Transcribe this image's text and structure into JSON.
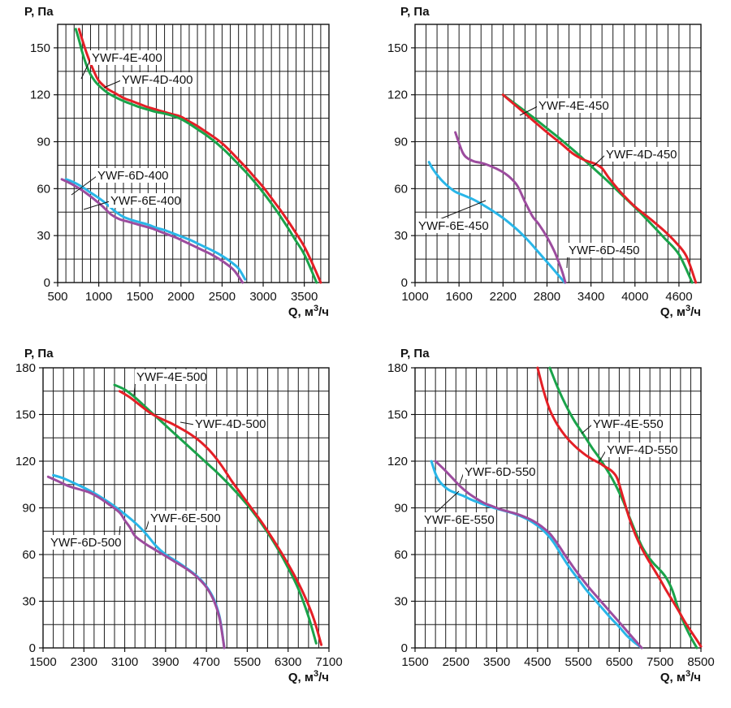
{
  "chart_data": [
    {
      "type": "line",
      "ylabel": "P, Па",
      "xlabel": "Q, м³/ч",
      "xlabel_prefix": "Q, м",
      "xlabel_sup": "3",
      "xlabel_suffix": "/ч",
      "xlim": [
        500,
        3800
      ],
      "ylim": [
        0,
        165
      ],
      "x_ticks": [
        500,
        1000,
        1500,
        2000,
        2500,
        3000,
        3500
      ],
      "y_ticks": [
        0,
        30,
        60,
        90,
        120,
        150
      ],
      "x_grid_step": 100,
      "y_grid_step": 15,
      "series": [
        {
          "name": "YWF-4E-400",
          "color": "#e41f26",
          "x": [
            760,
            800,
            850,
            900,
            950,
            1000,
            1100,
            1200,
            1300,
            1400,
            1500,
            1600,
            1700,
            1800,
            1900,
            2000,
            2100,
            2200,
            2300,
            2400,
            2500,
            2600,
            2700,
            2800,
            2900,
            3000,
            3100,
            3200,
            3300,
            3400,
            3500,
            3600,
            3700
          ],
          "y": [
            162,
            155,
            147,
            140,
            134,
            129,
            124,
            121,
            118,
            116,
            114,
            112,
            110.5,
            109,
            107.5,
            106,
            103,
            100,
            96.5,
            93,
            89,
            84,
            78.5,
            73,
            67,
            61,
            54,
            47,
            39.5,
            31.5,
            23,
            12,
            0
          ]
        },
        {
          "name": "YWF-4D-400",
          "color": "#1aa34a",
          "x": [
            720,
            760,
            800,
            850,
            900,
            950,
            1000,
            1100,
            1200,
            1300,
            1400,
            1500,
            1600,
            1700,
            1800,
            1900,
            2000,
            2100,
            2200,
            2300,
            2400,
            2500,
            2600,
            2700,
            2800,
            2900,
            3000,
            3100,
            3200,
            3300,
            3400,
            3500,
            3650
          ],
          "y": [
            162,
            155,
            147,
            139,
            133,
            129,
            126,
            121.5,
            118.5,
            116,
            114,
            112,
            110.5,
            109,
            108,
            106.5,
            104.5,
            101.5,
            98,
            94.5,
            90.5,
            86,
            81,
            75.5,
            70,
            64,
            57.5,
            50.5,
            43,
            35,
            26.5,
            18,
            0
          ]
        },
        {
          "name": "YWF-6D-400",
          "color": "#29b6e8",
          "x": [
            600,
            700,
            800,
            900,
            1000,
            1100,
            1200,
            1300,
            1400,
            1500,
            1600,
            1700,
            1800,
            1900,
            2000,
            2100,
            2200,
            2300,
            2400,
            2500,
            2600,
            2700,
            2780
          ],
          "y": [
            66,
            64,
            61,
            57.5,
            54,
            50,
            45.5,
            42,
            40,
            38.5,
            37,
            35,
            33.5,
            31.5,
            29.5,
            27.5,
            25,
            22.5,
            20,
            17,
            13.5,
            9,
            2
          ]
        },
        {
          "name": "YWF-6E-400",
          "color": "#9c4c9e",
          "x": [
            550,
            650,
            750,
            850,
            950,
            1050,
            1150,
            1250,
            1350,
            1450,
            1550,
            1650,
            1750,
            1850,
            1950,
            2050,
            2150,
            2250,
            2350,
            2450,
            2550,
            2650,
            2750
          ],
          "y": [
            66,
            63.5,
            60.5,
            57,
            53,
            48.5,
            43.5,
            40.5,
            39,
            37.5,
            36,
            34.5,
            32.5,
            30.5,
            28.5,
            26,
            23.5,
            21,
            18.5,
            15.5,
            12,
            7.5,
            0
          ]
        }
      ],
      "labels": [
        {
          "text": "YWF-4E-400",
          "series": 0
        },
        {
          "text": "YWF-4D-400",
          "series": 1
        },
        {
          "text": "YWF-6D-400",
          "series": 2
        },
        {
          "text": "YWF-6E-400",
          "series": 3
        }
      ]
    },
    {
      "type": "line",
      "ylabel": "P, Па",
      "xlabel": "Q, м³/ч",
      "xlabel_prefix": "Q, м",
      "xlabel_sup": "3",
      "xlabel_suffix": "/ч",
      "xlim": [
        1000,
        4900
      ],
      "ylim": [
        0,
        165
      ],
      "x_ticks": [
        1000,
        1600,
        2200,
        2800,
        3400,
        4000,
        4600
      ],
      "y_ticks": [
        0,
        30,
        60,
        90,
        120,
        150
      ],
      "x_grid_step": 150,
      "y_grid_step": 15,
      "series": [
        {
          "name": "YWF-4E-450",
          "color": "#1aa34a",
          "x": [
            2200,
            2400,
            2600,
            2800,
            3000,
            3200,
            3400,
            3600,
            3800,
            4000,
            4200,
            4400,
            4600,
            4780
          ],
          "y": [
            120,
            113,
            106,
            98.5,
            91,
            83,
            74.5,
            66,
            57,
            48,
            38.5,
            28.5,
            18,
            0
          ]
        },
        {
          "name": "YWF-4D-450",
          "color": "#e41f26",
          "x": [
            2200,
            2400,
            2600,
            2800,
            3000,
            3150,
            3300,
            3450,
            3550,
            3650,
            3800,
            4000,
            4200,
            4400,
            4550,
            4700,
            4830
          ],
          "y": [
            120,
            112,
            104,
            96,
            88.5,
            82.5,
            78.5,
            76,
            73,
            66.5,
            58,
            48.5,
            41,
            33,
            26,
            17,
            0
          ]
        },
        {
          "name": "YWF-6E-450",
          "color": "#29b6e8",
          "x": [
            1190,
            1250,
            1350,
            1450,
            1550,
            1650,
            1800,
            1950,
            2100,
            2250,
            2400,
            2550,
            2700,
            2850,
            2950,
            3040
          ],
          "y": [
            77,
            72,
            66,
            61.5,
            58,
            56,
            53,
            49,
            44.5,
            39.5,
            33.5,
            26.5,
            18.5,
            10.5,
            5,
            0
          ]
        },
        {
          "name": "YWF-6D-450",
          "color": "#9c4c9e",
          "x": [
            1550,
            1600,
            1650,
            1700,
            1800,
            1900,
            2000,
            2100,
            2200,
            2300,
            2400,
            2500,
            2600,
            2650,
            2700,
            2800,
            2900,
            2960,
            3000,
            3030,
            3050
          ],
          "y": [
            96,
            89,
            83,
            80,
            77.5,
            76.5,
            75,
            73,
            70.5,
            67,
            61.5,
            51.5,
            42.5,
            39.5,
            36.5,
            29,
            20,
            13,
            8,
            3.5,
            0
          ]
        }
      ],
      "labels": [
        {
          "text": "YWF-4E-450",
          "series": 0
        },
        {
          "text": "YWF-4D-450",
          "series": 1
        },
        {
          "text": "YWF-6E-450",
          "series": 2
        },
        {
          "text": "YWF-6D-450",
          "series": 3
        }
      ]
    },
    {
      "type": "line",
      "ylabel": "P, Па",
      "xlabel": "Q, м³/ч",
      "xlabel_prefix": "Q, м",
      "xlabel_sup": "3",
      "xlabel_suffix": "/ч",
      "xlim": [
        1500,
        7100
      ],
      "ylim": [
        0,
        180
      ],
      "x_ticks": [
        1500,
        2300,
        3100,
        3900,
        4700,
        5500,
        6300,
        7100
      ],
      "x_tick_labels": [
        "1500",
        "2300",
        "3100",
        "3900",
        "4700",
        "5500",
        "6300",
        "7100"
      ],
      "y_ticks": [
        0,
        30,
        60,
        90,
        120,
        150,
        180
      ],
      "x_grid_step": 200,
      "y_grid_step": 15,
      "series": [
        {
          "name": "YWF-4E-500",
          "color": "#1aa34a",
          "x": [
            2900,
            3100,
            3300,
            3500,
            3700,
            3900,
            4100,
            4300,
            4500,
            4700,
            4900,
            5100,
            5300,
            5500,
            5700,
            5900,
            6100,
            6300,
            6500,
            6700,
            6850
          ],
          "y": [
            169,
            166,
            161,
            155,
            149,
            143,
            137,
            131,
            125,
            119,
            113,
            106.5,
            99.5,
            92,
            83.5,
            74,
            63.5,
            51.5,
            38,
            20,
            3
          ]
        },
        {
          "name": "YWF-4D-500",
          "color": "#e41f26",
          "x": [
            3000,
            3200,
            3400,
            3600,
            3800,
            4000,
            4200,
            4400,
            4600,
            4800,
            5000,
            5200,
            5400,
            5600,
            5800,
            6000,
            6200,
            6400,
            6600,
            6800,
            6950
          ],
          "y": [
            165,
            161,
            156,
            151,
            147.5,
            144.5,
            141,
            137,
            132,
            125.5,
            117,
            107,
            98,
            89,
            80,
            70,
            59.5,
            48,
            35,
            19,
            2
          ]
        },
        {
          "name": "YWF-6E-500",
          "color": "#29b6e8",
          "x": [
            1700,
            1900,
            2100,
            2300,
            2500,
            2700,
            2900,
            3100,
            3300,
            3500,
            3700,
            3900,
            4100,
            4300,
            4500,
            4700,
            4850,
            4950,
            5000,
            5050
          ],
          "y": [
            111,
            109,
            106,
            103,
            99.5,
            95.5,
            91,
            86,
            80.5,
            74,
            66,
            60,
            56,
            51.5,
            46.5,
            39.5,
            31,
            21,
            12,
            0
          ]
        },
        {
          "name": "YWF-6D-500",
          "color": "#9c4c9e",
          "x": [
            1600,
            1800,
            2000,
            2200,
            2400,
            2600,
            2800,
            3000,
            3100,
            3200,
            3300,
            3500,
            3700,
            3900,
            4100,
            4300,
            4500,
            4700,
            4850,
            4950,
            5000,
            5050
          ],
          "y": [
            110,
            107,
            104,
            102,
            100,
            96.5,
            92,
            87,
            82,
            77.5,
            72,
            67,
            63,
            59,
            55,
            51,
            46,
            39,
            30,
            20,
            11,
            0
          ]
        }
      ],
      "labels": [
        {
          "text": "YWF-4E-500",
          "series": 0
        },
        {
          "text": "YWF-4D-500",
          "series": 1
        },
        {
          "text": "YWF-6E-500",
          "series": 2
        },
        {
          "text": "YWF-6D-500",
          "series": 3
        }
      ]
    },
    {
      "type": "line",
      "ylabel": "P, Па",
      "xlabel": "Q, м³/ч",
      "xlabel_prefix": "Q, м",
      "xlabel_sup": "3",
      "xlabel_suffix": "/ч",
      "xlim": [
        1500,
        8500
      ],
      "ylim": [
        0,
        180
      ],
      "x_ticks": [
        1500,
        2500,
        3500,
        4500,
        5500,
        6500,
        7500,
        8500
      ],
      "y_ticks": [
        0,
        30,
        60,
        90,
        120,
        150,
        180
      ],
      "x_grid_step": 250,
      "y_grid_step": 15,
      "series": [
        {
          "name": "YWF-4E-550",
          "color": "#1aa34a",
          "x": [
            4800,
            4950,
            5100,
            5250,
            5400,
            5550,
            5700,
            5850,
            6000,
            6150,
            6300,
            6450,
            6600,
            6750,
            6900,
            7050,
            7200,
            7350,
            7500,
            7650,
            7800,
            7950,
            8100,
            8250,
            8400
          ],
          "y": [
            180,
            170,
            161,
            153,
            146,
            140,
            134,
            128,
            122.5,
            116.5,
            110,
            102.5,
            94,
            84,
            74.5,
            65.5,
            59,
            54,
            50,
            45,
            37,
            25,
            15,
            7,
            0
          ]
        },
        {
          "name": "YWF-4D-550",
          "color": "#e41f26",
          "x": [
            4500,
            4650,
            4800,
            4950,
            5100,
            5250,
            5400,
            5550,
            5700,
            5850,
            6000,
            6150,
            6300,
            6450,
            6600,
            6750,
            6900,
            7050,
            7200,
            7350,
            7500,
            7650,
            7800,
            7950,
            8100,
            8250,
            8400,
            8500
          ],
          "y": [
            180,
            165,
            153,
            145,
            139,
            134,
            130,
            126.5,
            123.5,
            121,
            119,
            116.5,
            114,
            109,
            96,
            83,
            72.5,
            64,
            57,
            50.5,
            44,
            37,
            30.5,
            24,
            17,
            11,
            5,
            1
          ]
        },
        {
          "name": "YWF-6E-550",
          "color": "#29b6e8",
          "x": [
            1900,
            2000,
            2100,
            2300,
            2500,
            2700,
            2900,
            3100,
            3300,
            3500,
            3700,
            3900,
            4100,
            4300,
            4500,
            4700,
            4900,
            5100,
            5300,
            5500,
            5700,
            5900,
            6100,
            6300,
            6500,
            6700,
            6900,
            7050
          ],
          "y": [
            120,
            112,
            107,
            102,
            99.5,
            97.5,
            95,
            93,
            91,
            89.5,
            88,
            86.5,
            84.5,
            82,
            78.5,
            74,
            67.5,
            59,
            51,
            44,
            37,
            31,
            25,
            19,
            13.5,
            7.5,
            3,
            0
          ]
        },
        {
          "name": "YWF-6D-550",
          "color": "#9c4c9e",
          "x": [
            2000,
            2200,
            2400,
            2600,
            2800,
            3000,
            3200,
            3400,
            3600,
            3800,
            4000,
            4200,
            4400,
            4600,
            4800,
            5000,
            5200,
            5400,
            5600,
            5800,
            6000,
            6200,
            6400,
            6600,
            6800,
            6950,
            7050
          ],
          "y": [
            120,
            115,
            109.5,
            104,
            99.5,
            96,
            93,
            91,
            89,
            87.5,
            86,
            84,
            81.5,
            78,
            73.5,
            66.5,
            58.5,
            51,
            44,
            37.5,
            31.5,
            25.5,
            19.5,
            13.5,
            7.5,
            3,
            0
          ]
        }
      ],
      "labels": [
        {
          "text": "YWF-4E-550",
          "series": 0
        },
        {
          "text": "YWF-4D-550",
          "series": 1
        },
        {
          "text": "YWF-6D-550",
          "series": 3
        },
        {
          "text": "YWF-6E-550",
          "series": 2
        }
      ]
    }
  ]
}
